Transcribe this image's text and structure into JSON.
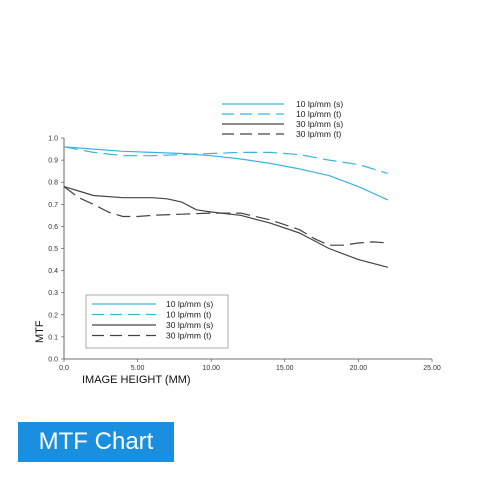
{
  "chart_data": {
    "type": "line",
    "xlabel": "IMAGE HEIGHT (MM)",
    "ylabel": "MTF",
    "xlim": [
      0,
      25
    ],
    "ylim": [
      0,
      1.0
    ],
    "x_ticks": [
      "0.0",
      "5.00",
      "10.00",
      "15.00",
      "20.00",
      "25.00"
    ],
    "y_ticks": [
      "0.0",
      "0.1",
      "0.2",
      "0.3",
      "0.4",
      "0.5",
      "0.6",
      "0.7",
      "0.8",
      "0.9",
      "1.0"
    ],
    "grid": false,
    "legend_placement": [
      "top-right",
      "bottom-left"
    ],
    "series": [
      {
        "name": "10 lp/mm (s)",
        "color": "#3ab4dc",
        "dash": false,
        "x": [
          0,
          2,
          4,
          6,
          8,
          10,
          12,
          14,
          16,
          18,
          20,
          22
        ],
        "y": [
          0.96,
          0.95,
          0.94,
          0.935,
          0.93,
          0.92,
          0.905,
          0.885,
          0.86,
          0.83,
          0.78,
          0.72
        ]
      },
      {
        "name": "10 lp/mm (t)",
        "color": "#3ab4dc",
        "dash": true,
        "x": [
          0,
          2,
          4,
          6,
          8,
          10,
          12,
          14,
          16,
          18,
          20,
          22
        ],
        "y": [
          0.96,
          0.935,
          0.92,
          0.92,
          0.925,
          0.93,
          0.935,
          0.935,
          0.925,
          0.9,
          0.88,
          0.84
        ]
      },
      {
        "name": "30 lp/mm (s)",
        "color": "#444444",
        "dash": false,
        "x": [
          0,
          1,
          2,
          4,
          6,
          7,
          8,
          9,
          10,
          12,
          14,
          16,
          18,
          20,
          22
        ],
        "y": [
          0.78,
          0.76,
          0.74,
          0.73,
          0.73,
          0.725,
          0.71,
          0.675,
          0.665,
          0.65,
          0.615,
          0.57,
          0.5,
          0.45,
          0.415
        ]
      },
      {
        "name": "30 lp/mm (t)",
        "color": "#444444",
        "dash": true,
        "x": [
          0,
          1,
          2,
          3,
          4,
          5,
          6,
          8,
          10,
          12,
          14,
          16,
          17,
          18,
          19,
          20,
          21,
          22
        ],
        "y": [
          0.78,
          0.73,
          0.7,
          0.665,
          0.645,
          0.645,
          0.65,
          0.655,
          0.66,
          0.66,
          0.63,
          0.585,
          0.545,
          0.515,
          0.515,
          0.525,
          0.53,
          0.525
        ]
      }
    ]
  },
  "caption": {
    "text": "MTF Chart",
    "background": "#1a8fe0"
  }
}
